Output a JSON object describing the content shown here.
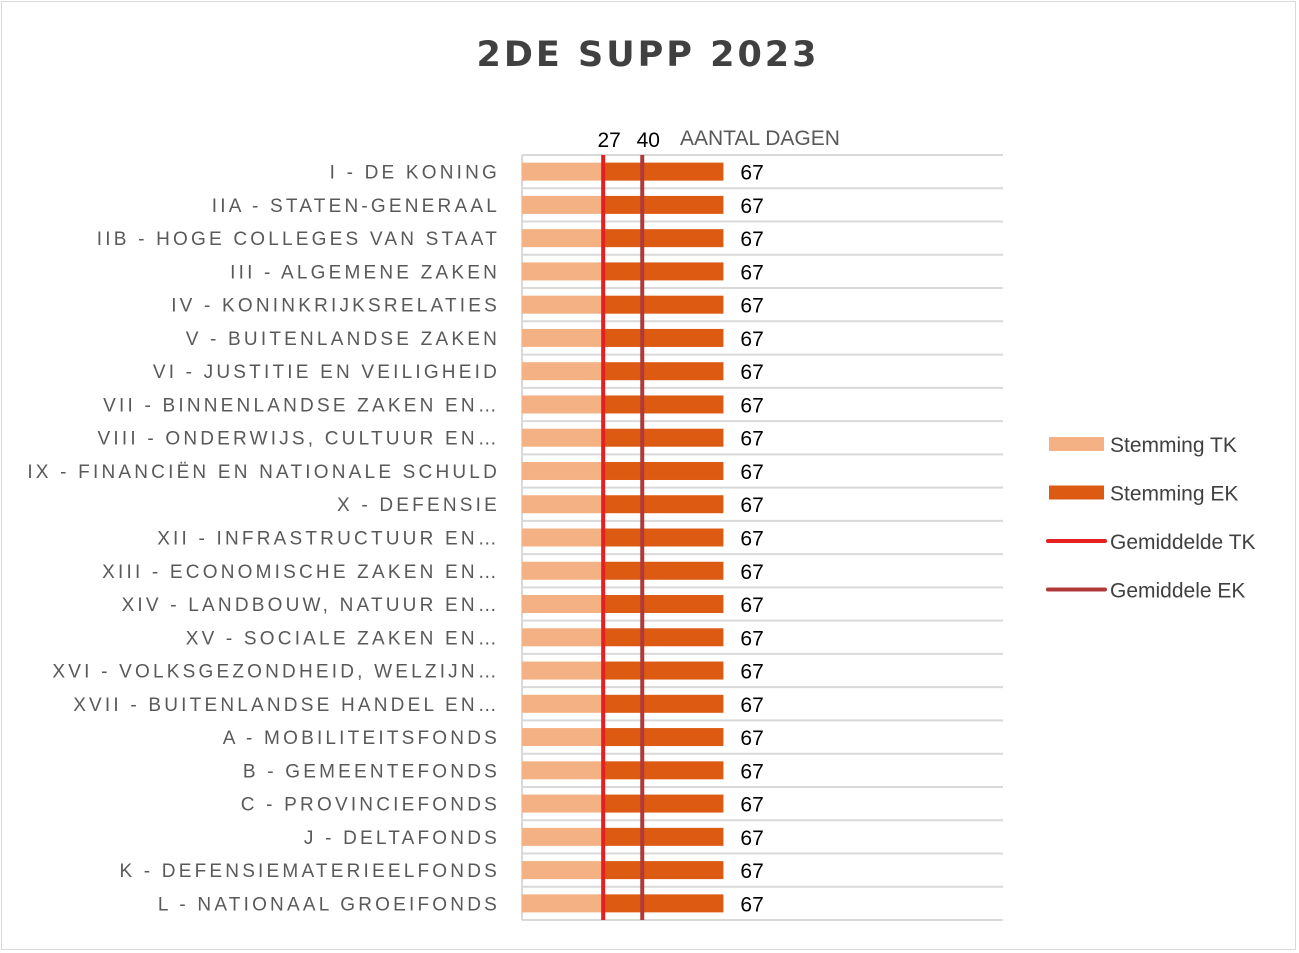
{
  "chart_data": {
    "type": "bar",
    "orientation": "horizontal",
    "stacked": true,
    "title": "2DE SUPP 2023",
    "value_axis_label": "AANTAL DAGEN",
    "categories": [
      "I - DE KONING",
      "IIA - STATEN-GENERAAL",
      "IIB - HOGE COLLEGES VAN STAAT",
      "III - ALGEMENE ZAKEN",
      "IV - KONINKRIJKSRELATIES",
      "V - BUITENLANDSE ZAKEN",
      "VI - JUSTITIE EN VEILIGHEID",
      "VII - BINNENLANDSE ZAKEN EN…",
      "VIII - ONDERWIJS, CULTUUR EN…",
      "IX - FINANCIËN EN NATIONALE SCHULD",
      "X - DEFENSIE",
      "XII - INFRASTRUCTUUR EN…",
      "XIII - ECONOMISCHE ZAKEN EN…",
      "XIV - LANDBOUW, NATUUR EN…",
      "XV - SOCIALE ZAKEN EN…",
      "XVI - VOLKSGEZONDHEID, WELZIJN…",
      "XVII - BUITENLANDSE HANDEL EN…",
      "A - MOBILITEITSFONDS",
      "B - GEMEENTEFONDS",
      "C - PROVINCIEFONDS",
      "J - DELTAFONDS",
      "K - DEFENSIEMATERIEELFONDS",
      "L - NATIONAAL GROEIFONDS"
    ],
    "series": [
      {
        "name": "Stemming TK",
        "color": "#f4b183",
        "values": [
          27,
          27,
          27,
          27,
          27,
          27,
          27,
          27,
          27,
          27,
          27,
          27,
          27,
          27,
          27,
          27,
          27,
          27,
          27,
          27,
          27,
          27,
          27
        ]
      },
      {
        "name": "Stemming EK",
        "color": "#dd5a12",
        "values": [
          40,
          40,
          40,
          40,
          40,
          40,
          40,
          40,
          40,
          40,
          40,
          40,
          40,
          40,
          40,
          40,
          40,
          40,
          40,
          40,
          40,
          40,
          40
        ]
      }
    ],
    "totals": [
      67,
      67,
      67,
      67,
      67,
      67,
      67,
      67,
      67,
      67,
      67,
      67,
      67,
      67,
      67,
      67,
      67,
      67,
      67,
      67,
      67,
      67,
      67
    ],
    "reference_lines": [
      {
        "name": "Gemiddelde TK",
        "value": 27,
        "label": "27",
        "color": "#e52020"
      },
      {
        "name": "Gemiddele EK",
        "value": 40,
        "label": "40",
        "color": "#b03a3a"
      }
    ],
    "xlim": [
      0,
      160
    ],
    "grid": true,
    "legend_position": "right"
  }
}
